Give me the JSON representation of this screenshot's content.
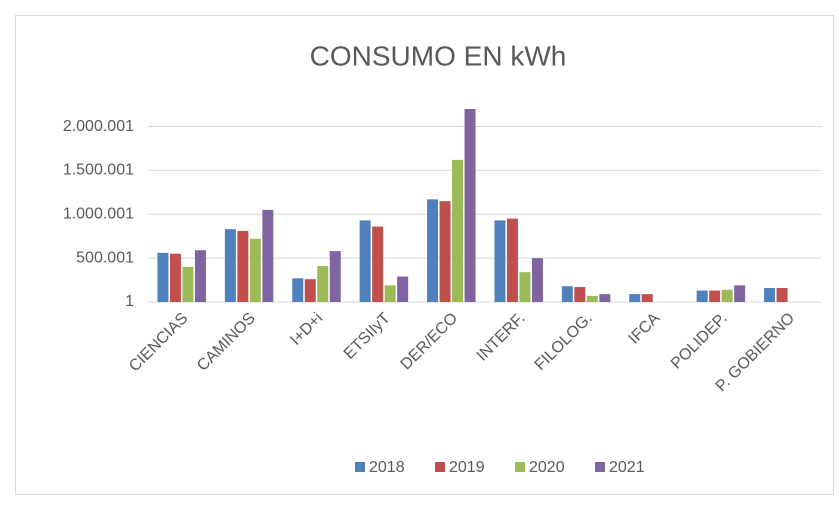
{
  "chart_data": {
    "type": "bar",
    "title": "CONSUMO EN kWh",
    "categories": [
      "CIENCIAS",
      "CAMINOS",
      "I+D+i",
      "ETSIIyT",
      "DER/ECO",
      "INTERF.",
      "FILOLOG.",
      "IFCA",
      "POLIDEP.",
      "P. GOBIERNO"
    ],
    "series": [
      {
        "name": "2018",
        "color": "#4f81bd",
        "values": [
          560000,
          830000,
          270000,
          930000,
          1170000,
          930000,
          180000,
          90000,
          130000,
          160000
        ]
      },
      {
        "name": "2019",
        "color": "#c0504d",
        "values": [
          550000,
          810000,
          260000,
          860000,
          1150000,
          950000,
          170000,
          90000,
          130000,
          160000
        ]
      },
      {
        "name": "2020",
        "color": "#9bbb59",
        "values": [
          400000,
          720000,
          410000,
          190000,
          1620000,
          340000,
          70000,
          null,
          140000,
          null
        ]
      },
      {
        "name": "2021",
        "color": "#8064a2",
        "values": [
          590000,
          1050000,
          580000,
          290000,
          2200000,
          500000,
          90000,
          null,
          190000,
          null
        ]
      }
    ],
    "ylim": [
      1,
      2200001
    ],
    "yticks": [
      1,
      {
        "value": 500001,
        "label": "500.001"
      },
      {
        "value": 1000001,
        "label": "1.000.001"
      },
      {
        "value": 1500001,
        "label": "1.500.001"
      },
      {
        "value": 2000001,
        "label": "2.000.001"
      }
    ],
    "grid": true,
    "legend": "bottom"
  }
}
